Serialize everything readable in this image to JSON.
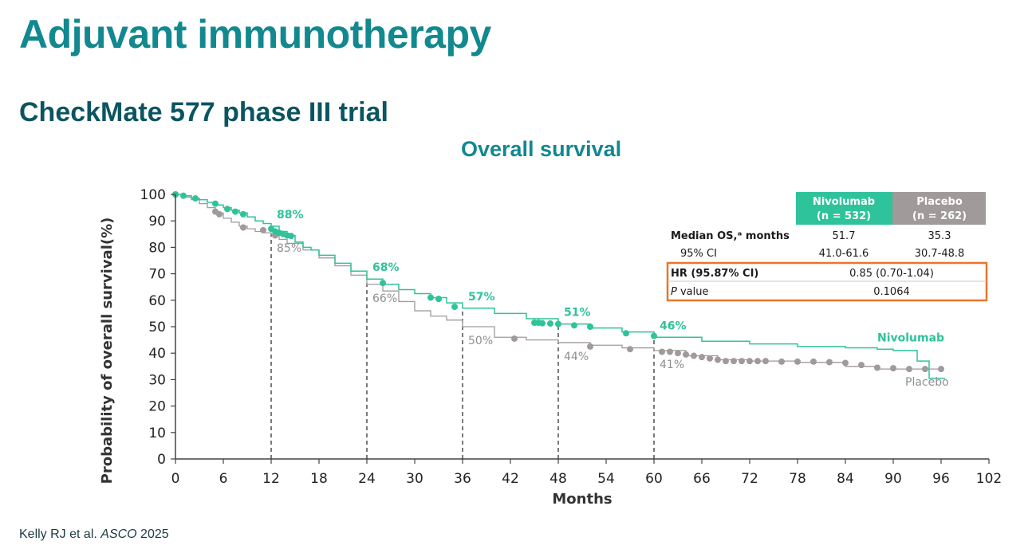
{
  "slide": {
    "title": "Adjuvant immunotherapy",
    "subtitle": "CheckMate 577 phase III trial",
    "footer_author": "Kelly RJ et al. ",
    "footer_source": "ASCO",
    "footer_year": " 2025"
  },
  "chart_data": {
    "type": "line",
    "title": "Overall survival",
    "xlabel": "Months",
    "ylabel": "Probability of overall survival(%)",
    "xlim": [
      0,
      102
    ],
    "ylim": [
      0,
      100
    ],
    "xticks": [
      0,
      6,
      12,
      18,
      24,
      30,
      36,
      42,
      48,
      54,
      60,
      66,
      72,
      78,
      84,
      90,
      96,
      102
    ],
    "yticks": [
      0,
      10,
      20,
      30,
      40,
      50,
      60,
      70,
      80,
      90,
      100
    ],
    "landmarks": [
      12,
      24,
      36,
      48,
      60
    ],
    "colors": {
      "nivolumab": "#2ec39a",
      "placebo": "#a09a9a",
      "highlight_box": "#e8772a"
    },
    "series": [
      {
        "name": "Nivolumab",
        "landmark_labels": [
          "88%",
          "68%",
          "57%",
          "51%",
          "46%"
        ],
        "x": [
          0,
          1,
          2,
          3,
          4,
          5,
          6,
          7,
          8,
          9,
          10,
          11,
          12,
          13,
          14,
          15,
          16,
          17,
          18,
          20,
          22,
          24,
          26,
          28,
          30,
          32,
          34,
          36,
          40,
          44,
          48,
          52,
          56,
          60,
          66,
          72,
          78,
          84,
          88,
          90,
          92,
          93,
          93.5,
          94.5,
          96.5
        ],
        "y": [
          100,
          99.5,
          98.5,
          98,
          97,
          96,
          95,
          94,
          93,
          91.5,
          90,
          89,
          88,
          86,
          84.5,
          82,
          80,
          79,
          77,
          74,
          71,
          68,
          66,
          64,
          62.5,
          61,
          59,
          57,
          55,
          53,
          51,
          49.5,
          48,
          46,
          44.5,
          43.5,
          42.5,
          42,
          41.5,
          41,
          41,
          37,
          37,
          30.5,
          30.5
        ],
        "censor_x": [
          0,
          1,
          2.5,
          5,
          6.5,
          7.5,
          8.5,
          12,
          12.5,
          13,
          13.5,
          14,
          14.5,
          26,
          32,
          33,
          35,
          45,
          45.5,
          46,
          47,
          48,
          50,
          52,
          56.5,
          60
        ],
        "censor_y": [
          100,
          99.5,
          98.5,
          96.5,
          94.5,
          93.5,
          92.5,
          87,
          86,
          85.5,
          85,
          84.5,
          84.3,
          66.5,
          61,
          60.5,
          57.5,
          51.5,
          51.5,
          51.3,
          51.2,
          51,
          50.5,
          50,
          47.5,
          46.5
        ]
      },
      {
        "name": "Placebo",
        "landmark_labels": [
          "85%",
          "66%",
          "50%",
          "44%",
          "41%"
        ],
        "x": [
          0,
          1,
          2,
          3,
          4,
          5,
          6,
          7,
          8,
          9,
          10,
          11,
          12,
          13,
          14,
          16,
          18,
          20,
          22,
          24,
          26,
          28,
          30,
          32,
          34,
          36,
          40,
          44,
          48,
          52,
          56,
          60,
          64,
          68,
          72,
          78,
          84,
          88,
          92,
          94,
          96
        ],
        "y": [
          100,
          99,
          98,
          96.5,
          95,
          93,
          91,
          89.5,
          88,
          87,
          86,
          85.5,
          85,
          83,
          81.5,
          79,
          76,
          73,
          69.5,
          66,
          63.5,
          59.5,
          56,
          54,
          52.5,
          50,
          46,
          45,
          44,
          43,
          42,
          41,
          39,
          37.5,
          37,
          36.5,
          35,
          34,
          34,
          34,
          34
        ],
        "censor_x": [
          0,
          5,
          5.5,
          8.5,
          11,
          12.5,
          42.5,
          52,
          57,
          61,
          62,
          63,
          64,
          65,
          66,
          67,
          68,
          69,
          70,
          71,
          72,
          73,
          74,
          76,
          78,
          80,
          82,
          84,
          86,
          88,
          90,
          92,
          94,
          96
        ],
        "censor_y": [
          100,
          93.5,
          92.5,
          87.5,
          86.5,
          84.5,
          45.5,
          42.5,
          41.5,
          40.5,
          40.5,
          40,
          39.5,
          39,
          38.5,
          38,
          37.5,
          37,
          37,
          37,
          37,
          37,
          37,
          36.8,
          36.8,
          36.8,
          36.6,
          36.3,
          35.5,
          34.5,
          34.3,
          34,
          34,
          34
        ]
      }
    ],
    "table": {
      "headers": [
        "",
        "Nivolumab",
        "Placebo"
      ],
      "header_sub": [
        "",
        "(n = 532)",
        "(n = 262)"
      ],
      "rows": [
        {
          "label": "Median OS,ᵃ months",
          "nivo": "51.7",
          "placebo": "35.3"
        },
        {
          "label": "95% CI",
          "nivo": "41.0-61.6",
          "placebo": "30.7-48.8"
        }
      ],
      "highlight_rows": [
        {
          "label": "HR (95.87% CI)",
          "value": "0.85 (0.70-1.04)"
        },
        {
          "label_italic": "P",
          "label": " value",
          "value": "0.1064"
        }
      ]
    }
  }
}
